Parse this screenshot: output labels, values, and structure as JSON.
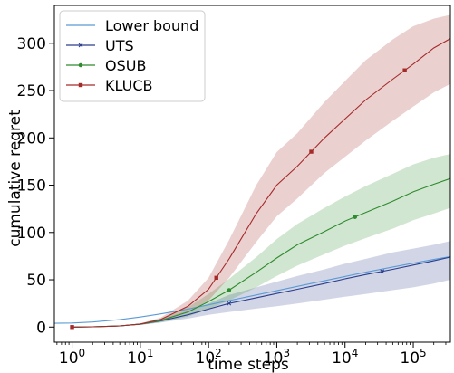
{
  "chart_data": {
    "type": "line",
    "title": "",
    "xlabel": "time steps",
    "ylabel": "cumulative regret",
    "xscale": "log",
    "xlim": [
      0.55,
      350000
    ],
    "ylim": [
      -16,
      340
    ],
    "x_ticks": [
      {
        "value": 1,
        "base": "10",
        "exp": "0"
      },
      {
        "value": 10,
        "base": "10",
        "exp": "1"
      },
      {
        "value": 100,
        "base": "10",
        "exp": "2"
      },
      {
        "value": 1000,
        "base": "10",
        "exp": "3"
      },
      {
        "value": 10000,
        "base": "10",
        "exp": "4"
      },
      {
        "value": 100000,
        "base": "10",
        "exp": "5"
      }
    ],
    "y_ticks": [
      {
        "value": 0,
        "label": "0"
      },
      {
        "value": 50,
        "label": "50"
      },
      {
        "value": 100,
        "label": "100"
      },
      {
        "value": 150,
        "label": "150"
      },
      {
        "value": 200,
        "label": "200"
      },
      {
        "value": 250,
        "label": "250"
      },
      {
        "value": 300,
        "label": "300"
      }
    ],
    "grid": false,
    "legend_position": "top-left",
    "series": [
      {
        "name": "Lower bound",
        "color": "#5b9bd5",
        "marker": "none",
        "x": [
          0.55,
          1,
          2,
          5,
          10,
          20,
          50,
          100,
          200,
          500,
          1000,
          2000,
          5000,
          10000,
          20000,
          50000,
          100000,
          200000,
          350000
        ],
        "y": [
          4,
          4.3,
          5.3,
          7.8,
          10.6,
          14.0,
          19.0,
          23.5,
          28,
          34,
          38.5,
          43,
          49,
          53.5,
          58,
          63.5,
          67.5,
          71.5,
          74.5
        ]
      },
      {
        "name": "UTS",
        "color": "#2c3e8c",
        "marker": "x",
        "marker_x": [
          200,
          35000
        ],
        "x": [
          1,
          2,
          5,
          10,
          20,
          50,
          100,
          200,
          500,
          1000,
          2000,
          5000,
          10000,
          20000,
          50000,
          100000,
          200000,
          350000
        ],
        "y": [
          0,
          0.3,
          1.2,
          3,
          6.5,
          13,
          19,
          25,
          31,
          35.5,
          40,
          46,
          51,
          55.5,
          61,
          65.5,
          70,
          74
        ],
        "band_low": [
          0,
          0.2,
          0.9,
          2.3,
          4.8,
          9,
          13,
          16,
          19.5,
          22,
          25,
          29,
          32,
          35,
          39,
          42,
          46,
          50
        ],
        "band_high": [
          0,
          0.4,
          1.5,
          3.7,
          8.2,
          17,
          25,
          34,
          42,
          48,
          54,
          61,
          67,
          72,
          79,
          83,
          87,
          91
        ]
      },
      {
        "name": "OSUB",
        "color": "#2e8b2e",
        "marker": "o",
        "marker_x": [
          200,
          14000
        ],
        "x": [
          1,
          2,
          5,
          10,
          20,
          50,
          100,
          200,
          500,
          1000,
          2000,
          5000,
          10000,
          20000,
          50000,
          100000,
          200000,
          350000
        ],
        "y": [
          0,
          0.3,
          1.2,
          3,
          7,
          16,
          27,
          39,
          58,
          73,
          87,
          101,
          112,
          121,
          133,
          143,
          151,
          157
        ],
        "band_low": [
          0,
          0.2,
          0.9,
          2.3,
          5,
          11,
          19,
          28,
          42,
          54,
          65,
          77,
          86,
          94,
          104,
          113,
          120,
          126
        ],
        "band_high": [
          0,
          0.4,
          1.5,
          3.7,
          9,
          21,
          35,
          51,
          74,
          93,
          109,
          126,
          138,
          149,
          162,
          172,
          179,
          183
        ]
      },
      {
        "name": "KLUCB",
        "color": "#a52a2a",
        "marker": "s",
        "marker_x": [
          1,
          130,
          3200,
          75000
        ],
        "x": [
          1,
          2,
          5,
          10,
          20,
          50,
          100,
          200,
          500,
          1000,
          2000,
          5000,
          10000,
          20000,
          50000,
          100000,
          200000,
          350000
        ],
        "y": [
          0,
          0.3,
          1.2,
          3.2,
          8,
          22,
          40,
          72,
          120,
          150,
          170,
          200,
          220,
          240,
          262,
          278,
          295,
          305
        ],
        "band_low": [
          0,
          0.2,
          0.9,
          2.5,
          6,
          16,
          28,
          52,
          90,
          117,
          136,
          163,
          180,
          197,
          218,
          233,
          248,
          257
        ],
        "band_high": [
          0,
          0.4,
          1.5,
          3.9,
          10,
          28,
          52,
          92,
          150,
          185,
          205,
          238,
          260,
          282,
          304,
          318,
          326,
          330
        ]
      }
    ]
  }
}
